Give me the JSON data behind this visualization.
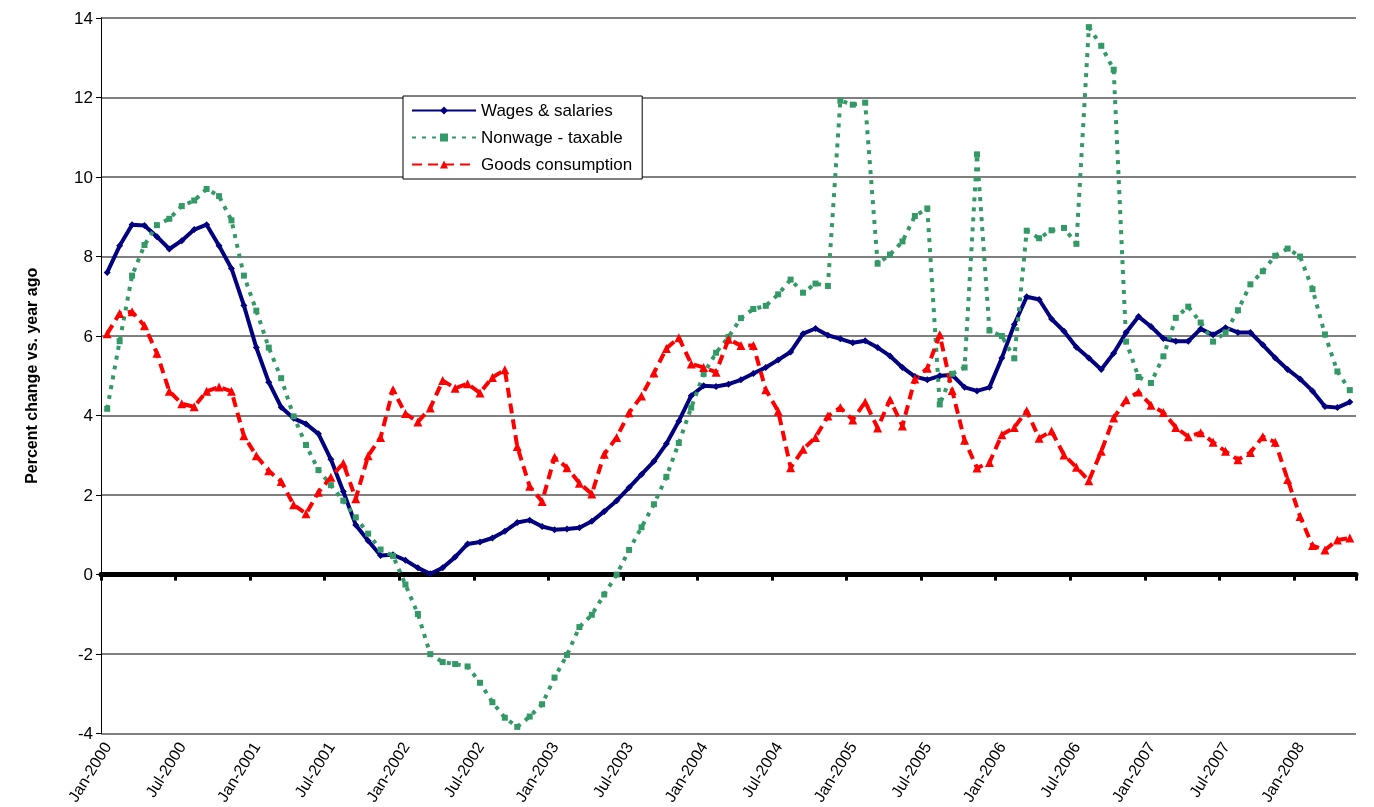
{
  "chart_data": {
    "type": "line",
    "ylabel": "Percent change vs. year ago",
    "categories": [
      "Jan-2000",
      null,
      null,
      null,
      null,
      null,
      "Jul-2000",
      null,
      null,
      null,
      null,
      null,
      "Jan-2001",
      null,
      null,
      null,
      null,
      null,
      "Jul-2001",
      null,
      null,
      null,
      null,
      null,
      "Jan-2002",
      null,
      null,
      null,
      null,
      null,
      "Jul-2002",
      null,
      null,
      null,
      null,
      null,
      "Jan-2003",
      null,
      null,
      null,
      null,
      null,
      "Jul-2003",
      null,
      null,
      null,
      null,
      null,
      "Jan-2004",
      null,
      null,
      null,
      null,
      null,
      "Jul-2004",
      null,
      null,
      null,
      null,
      null,
      "Jan-2005",
      null,
      null,
      null,
      null,
      null,
      "Jul-2005",
      null,
      null,
      null,
      null,
      null,
      "Jan-2006",
      null,
      null,
      null,
      null,
      null,
      "Jul-2006",
      null,
      null,
      null,
      null,
      null,
      "Jan-2007",
      null,
      null,
      null,
      null,
      null,
      "Jul-2007",
      null,
      null,
      null,
      null,
      null,
      "Jan-2008",
      null,
      null,
      null,
      null
    ],
    "series": [
      {
        "name": "Wages & salaries",
        "color": "#000080",
        "marker": "diamond",
        "line_style": "solid",
        "values": [
          7.6,
          8.27,
          8.8,
          8.78,
          8.5,
          8.19,
          8.4,
          8.68,
          8.8,
          8.27,
          7.7,
          6.77,
          5.71,
          4.84,
          4.21,
          3.93,
          3.79,
          3.54,
          2.9,
          2.09,
          1.25,
          0.85,
          0.48,
          0.5,
          0.36,
          0.17,
          0.02,
          0.17,
          0.44,
          0.77,
          0.82,
          0.92,
          1.09,
          1.31,
          1.37,
          1.21,
          1.13,
          1.15,
          1.18,
          1.34,
          1.59,
          1.86,
          2.19,
          2.52,
          2.85,
          3.29,
          3.86,
          4.5,
          4.75,
          4.73,
          4.79,
          4.9,
          5.06,
          5.21,
          5.4,
          5.6,
          6.06,
          6.19,
          6.02,
          5.93,
          5.83,
          5.88,
          5.71,
          5.5,
          5.21,
          4.98,
          4.9,
          5.0,
          5.02,
          4.71,
          4.62,
          4.71,
          5.45,
          6.29,
          6.99,
          6.92,
          6.43,
          6.12,
          5.72,
          5.45,
          5.16,
          5.57,
          6.09,
          6.49,
          6.24,
          5.94,
          5.87,
          5.87,
          6.18,
          6.03,
          6.21,
          6.09,
          6.09,
          5.78,
          5.45,
          5.16,
          4.92,
          4.62,
          4.23,
          4.2,
          4.34
        ]
      },
      {
        "name": "Nonwage - taxable",
        "color": "#339966",
        "marker": "square",
        "line_style": "dotted",
        "values": [
          4.17,
          5.87,
          7.52,
          8.29,
          8.79,
          8.95,
          9.27,
          9.41,
          9.7,
          9.52,
          8.91,
          7.52,
          6.64,
          5.71,
          4.94,
          3.98,
          3.26,
          2.63,
          2.25,
          1.86,
          1.44,
          1.03,
          0.63,
          0.47,
          -0.25,
          -0.99,
          -2.0,
          -2.2,
          -2.25,
          -2.31,
          -2.72,
          -3.21,
          -3.6,
          -3.83,
          -3.57,
          -3.26,
          -2.59,
          -2.02,
          -1.32,
          -1.01,
          -0.5,
          0.0,
          0.62,
          1.19,
          1.77,
          2.46,
          3.31,
          4.2,
          5.05,
          5.58,
          5.98,
          6.45,
          6.68,
          6.76,
          7.05,
          7.42,
          7.09,
          7.32,
          7.26,
          11.92,
          11.82,
          11.87,
          7.82,
          8.05,
          8.38,
          9.02,
          9.21,
          4.28,
          5.05,
          5.21,
          10.57,
          6.14,
          6.0,
          5.44,
          8.65,
          8.46,
          8.66,
          8.72,
          8.32,
          13.77,
          13.3,
          12.7,
          5.86,
          4.97,
          4.82,
          5.49,
          6.46,
          6.74,
          6.34,
          5.86,
          6.09,
          6.65,
          7.3,
          7.63,
          8.02,
          8.2,
          8.0,
          7.18,
          6.04,
          5.11,
          4.64
        ]
      },
      {
        "name": "Goods consumption",
        "color": "#ff0000",
        "marker": "triangle",
        "line_style": "dashed",
        "values": [
          6.06,
          6.57,
          6.61,
          6.26,
          5.57,
          4.61,
          4.3,
          4.22,
          4.61,
          4.72,
          4.61,
          3.49,
          2.99,
          2.61,
          2.34,
          1.76,
          1.53,
          2.07,
          2.45,
          2.8,
          1.91,
          2.99,
          3.45,
          4.65,
          4.05,
          3.84,
          4.19,
          4.88,
          4.69,
          4.8,
          4.57,
          4.96,
          5.15,
          3.22,
          2.22,
          1.84,
          2.95,
          2.69,
          2.3,
          2.03,
          3.03,
          3.45,
          4.07,
          4.49,
          5.07,
          5.69,
          5.96,
          5.3,
          5.21,
          5.09,
          5.92,
          5.76,
          5.76,
          4.65,
          4.11,
          2.69,
          3.15,
          3.45,
          3.99,
          4.2,
          3.89,
          4.34,
          3.69,
          4.4,
          3.74,
          4.92,
          5.19,
          6.03,
          4.63,
          3.38,
          2.68,
          2.82,
          3.52,
          3.7,
          4.12,
          3.43,
          3.61,
          3.01,
          2.7,
          2.36,
          3.1,
          3.94,
          4.4,
          4.59,
          4.26,
          4.08,
          3.7,
          3.47,
          3.57,
          3.33,
          3.1,
          2.89,
          3.07,
          3.47,
          3.33,
          2.39,
          1.46,
          0.73,
          0.62,
          0.87,
          0.92
        ]
      }
    ],
    "ylim": [
      -4,
      14
    ],
    "yticks": [
      -4,
      -2,
      0,
      2,
      4,
      6,
      8,
      10,
      12,
      14
    ],
    "grid": "y",
    "legend": "top left"
  }
}
